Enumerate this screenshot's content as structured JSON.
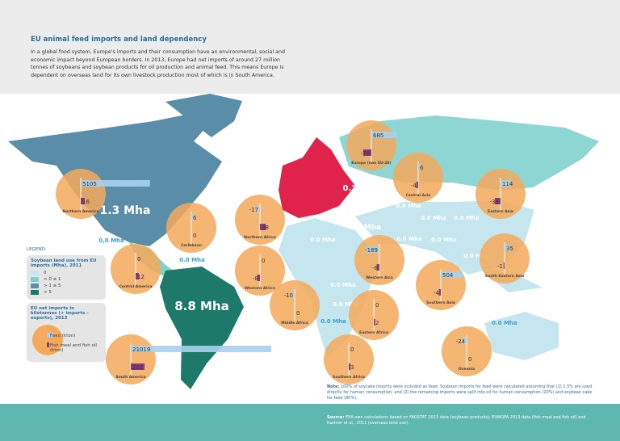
{
  "header": {
    "title": "EU animal feed imports and land dependency",
    "text": "In a global food system, Europe's imports and their consumption have an environmental, social and economic impact beyond European borders. In 2013, Europe had net imports of around 27 million tonnes of soybeans and soybean products for oil production and animal feed. This means Europe is dependent on overseas land for its own livestock production most of which is in South America."
  },
  "map_labels": [
    "1.3 Mha",
    "0.3 Mha",
    "8.8 Mha",
    "0,0 Mha",
    "0.0 Mha",
    "0.2 Mha",
    "0.0 Mha",
    "0.0 Mha",
    "0.0 Mha",
    "0.0 Mha",
    "0.0 Mha",
    "0.0 Mha",
    "0.0 Mha",
    "0.0 Mha",
    "0.0 Mha",
    "0.0 Mha",
    "0.0 Mha"
  ],
  "regions": [
    {
      "name": "Northern America",
      "feed": 5105,
      "fish": 16
    },
    {
      "name": "Caribbean",
      "feed": 6,
      "fish": 0
    },
    {
      "name": "Central America",
      "feed": 0,
      "fish": 12
    },
    {
      "name": "South America",
      "feed": 21019,
      "fish": 202
    },
    {
      "name": "Europe (non EU-28)",
      "feed": 685,
      "fish": -70
    },
    {
      "name": "Central Asia",
      "feed": 6,
      "fish": -4
    },
    {
      "name": "Eastern Asia",
      "feed": 114,
      "fish": -33
    },
    {
      "name": "Northern Africa",
      "feed": -17,
      "fish": 38
    },
    {
      "name": "Western Africa",
      "feed": 0,
      "fish": -8
    },
    {
      "name": "Middle Africa",
      "feed": -10,
      "fish": 0
    },
    {
      "name": "Western Asia",
      "feed": -189,
      "fish": -8
    },
    {
      "name": "Eastern Africa",
      "feed": 0,
      "fish": 2
    },
    {
      "name": "Southern Africa",
      "feed": 0,
      "fish": 3
    },
    {
      "name": "Southern Asia",
      "feed": 504,
      "fish": -4
    },
    {
      "name": "South-Eastern Asia",
      "feed": 35,
      "fish": -1
    },
    {
      "name": "Oceania",
      "feed": -24,
      "fish": 0
    }
  ],
  "legend": {
    "title": "LEGEND:",
    "land_title": "Soybean land use from EU imports (Mha), 2011",
    "land_classes": [
      "0",
      "> 0 ≤ 1",
      "> 1 ≤ 5",
      "> 5"
    ],
    "imports_title": "EU net imports in kilotonnes (+ imports - exports), 2013",
    "feed_label": "Feed (kton)",
    "fish_label": "Fish meal and fish oil (kton)"
  },
  "note": {
    "label": "Note:",
    "text": "100% of soycake imports were included as feed. Soybean imports for feed were calculated assuming that (1) 1.5% are used directly for human consumption; and (2) the remaining imports were split into oil for human consumption (20%) and soybean cake for feed (80%)."
  },
  "source": {
    "label": "Source:",
    "text": "EEA own calculations based on FAOSTAT 2013 data (soybean products); EUMOFA 2013 data (fish meal and fish oil) and Kastner et al., 2011 (overseas land use)."
  }
}
